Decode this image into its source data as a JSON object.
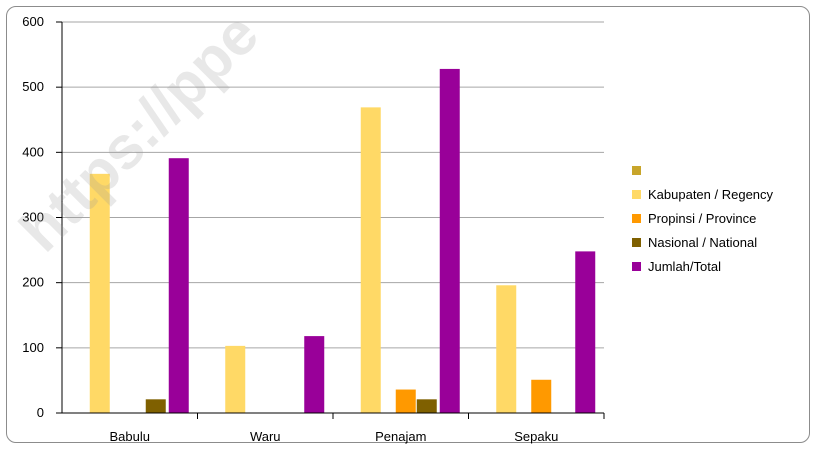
{
  "chart_data": {
    "type": "bar",
    "categories": [
      "Babulu",
      "Waru",
      "Penajam",
      "Sepaku"
    ],
    "series": [
      {
        "name": "",
        "color": "#c8a52a",
        "values": [
          0,
          0,
          0,
          0
        ]
      },
      {
        "name": "Kabupaten / Regency",
        "color": "#ffd966",
        "values": [
          367,
          103,
          469,
          196
        ]
      },
      {
        "name": "Propinsi / Province",
        "color": "#ff9900",
        "values": [
          0,
          0,
          36,
          51
        ]
      },
      {
        "name": "Nasional / National",
        "color": "#7f6000",
        "values": [
          21,
          0,
          21,
          0
        ]
      },
      {
        "name": "Jumlah/Total",
        "color": "#990099",
        "values": [
          391,
          118,
          528,
          248
        ]
      }
    ],
    "ylim": [
      0,
      600
    ],
    "yticks": [
      "0",
      "100",
      "200",
      "300",
      "400",
      "500",
      "600"
    ],
    "grid": true,
    "legend": "right",
    "title": "",
    "xlabel": "",
    "ylabel": ""
  },
  "watermark": "https://ppe"
}
